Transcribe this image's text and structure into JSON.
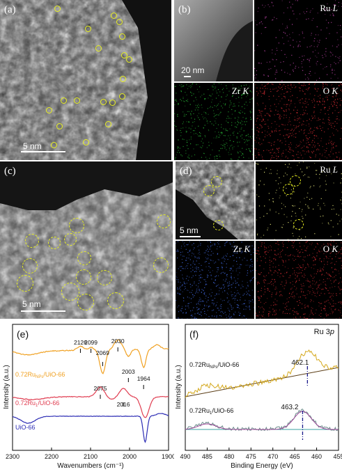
{
  "figure": {
    "panel_a": {
      "tag": "(a)",
      "scale_label": "5 nm"
    },
    "panel_b": {
      "tag": "(b)",
      "scale_label": "20 nm",
      "maps": [
        {
          "element": "Ru",
          "line": "L",
          "color": "#b0409c"
        },
        {
          "element": "Zr",
          "line": "K",
          "color": "#25a832"
        },
        {
          "element": "O",
          "line": "K",
          "color": "#c0282e"
        }
      ]
    },
    "panel_c": {
      "tag": "(c)",
      "scale_label": "5 nm"
    },
    "panel_d": {
      "tag": "(d)",
      "scale_label": "5 nm",
      "maps": [
        {
          "element": "Ru",
          "line": "L",
          "color": "#e0e078"
        },
        {
          "element": "Zr",
          "line": "K",
          "color": "#3d62d0"
        },
        {
          "element": "O",
          "line": "K",
          "color": "#c0282e"
        }
      ]
    },
    "marker_color": "#e8f020"
  },
  "chart_data": [
    {
      "type": "line",
      "panel": "(e)",
      "xlabel": "Wavenumbers (cm⁻¹)",
      "ylabel": "Intensity (a.u.)",
      "xlim": [
        2300,
        1900
      ],
      "xticks": [
        2300,
        2200,
        2100,
        2000,
        1900
      ],
      "series": [
        {
          "name": "0.72Ru_NPs/UiO-66",
          "color": "#f0a020"
        },
        {
          "name": "0.72Ru1/UiO-66",
          "color": "#e03c50"
        },
        {
          "name": "UiO-66",
          "color": "#2a2ab4"
        }
      ],
      "annotations": [
        {
          "label": "2126",
          "x": 2126
        },
        {
          "label": "2099",
          "x": 2099
        },
        {
          "label": "2069",
          "x": 2069
        },
        {
          "label": "2030",
          "x": 2030
        },
        {
          "label": "2003",
          "x": 2003
        },
        {
          "label": "1964",
          "x": 1964
        },
        {
          "label": "2075",
          "x": 2075
        },
        {
          "label": "2016",
          "x": 2016
        }
      ]
    },
    {
      "type": "line",
      "panel": "(f)",
      "title": "Ru 3p",
      "xlabel": "Binding Energy (eV)",
      "ylabel": "Intensity (a.u.)",
      "xlim": [
        490,
        455
      ],
      "xticks": [
        490,
        485,
        480,
        475,
        470,
        465,
        460,
        455
      ],
      "series": [
        {
          "name": "0.72Ru_NPs/UiO-66",
          "color": "#d4a81c",
          "peak_label": "462.1",
          "peak": 462.1
        },
        {
          "name": "0.72Ru1/UiO-66",
          "color": "#6a8a8a",
          "peak_label": "463.2",
          "peak": 463.2
        }
      ]
    }
  ],
  "labels": {
    "e_tag": "(e)",
    "f_tag": "(f)",
    "e_series_np_prefix": "0.72Ru",
    "e_series_np_sub": "NPs",
    "e_series_np_suffix": "/UiO-66",
    "e_series_1_prefix": "0.72Ru",
    "e_series_1_sub": "1",
    "e_series_1_suffix": "/UiO-66",
    "e_series_uio": "UiO-66",
    "f_title_main": "Ru 3",
    "f_title_it": "p"
  }
}
